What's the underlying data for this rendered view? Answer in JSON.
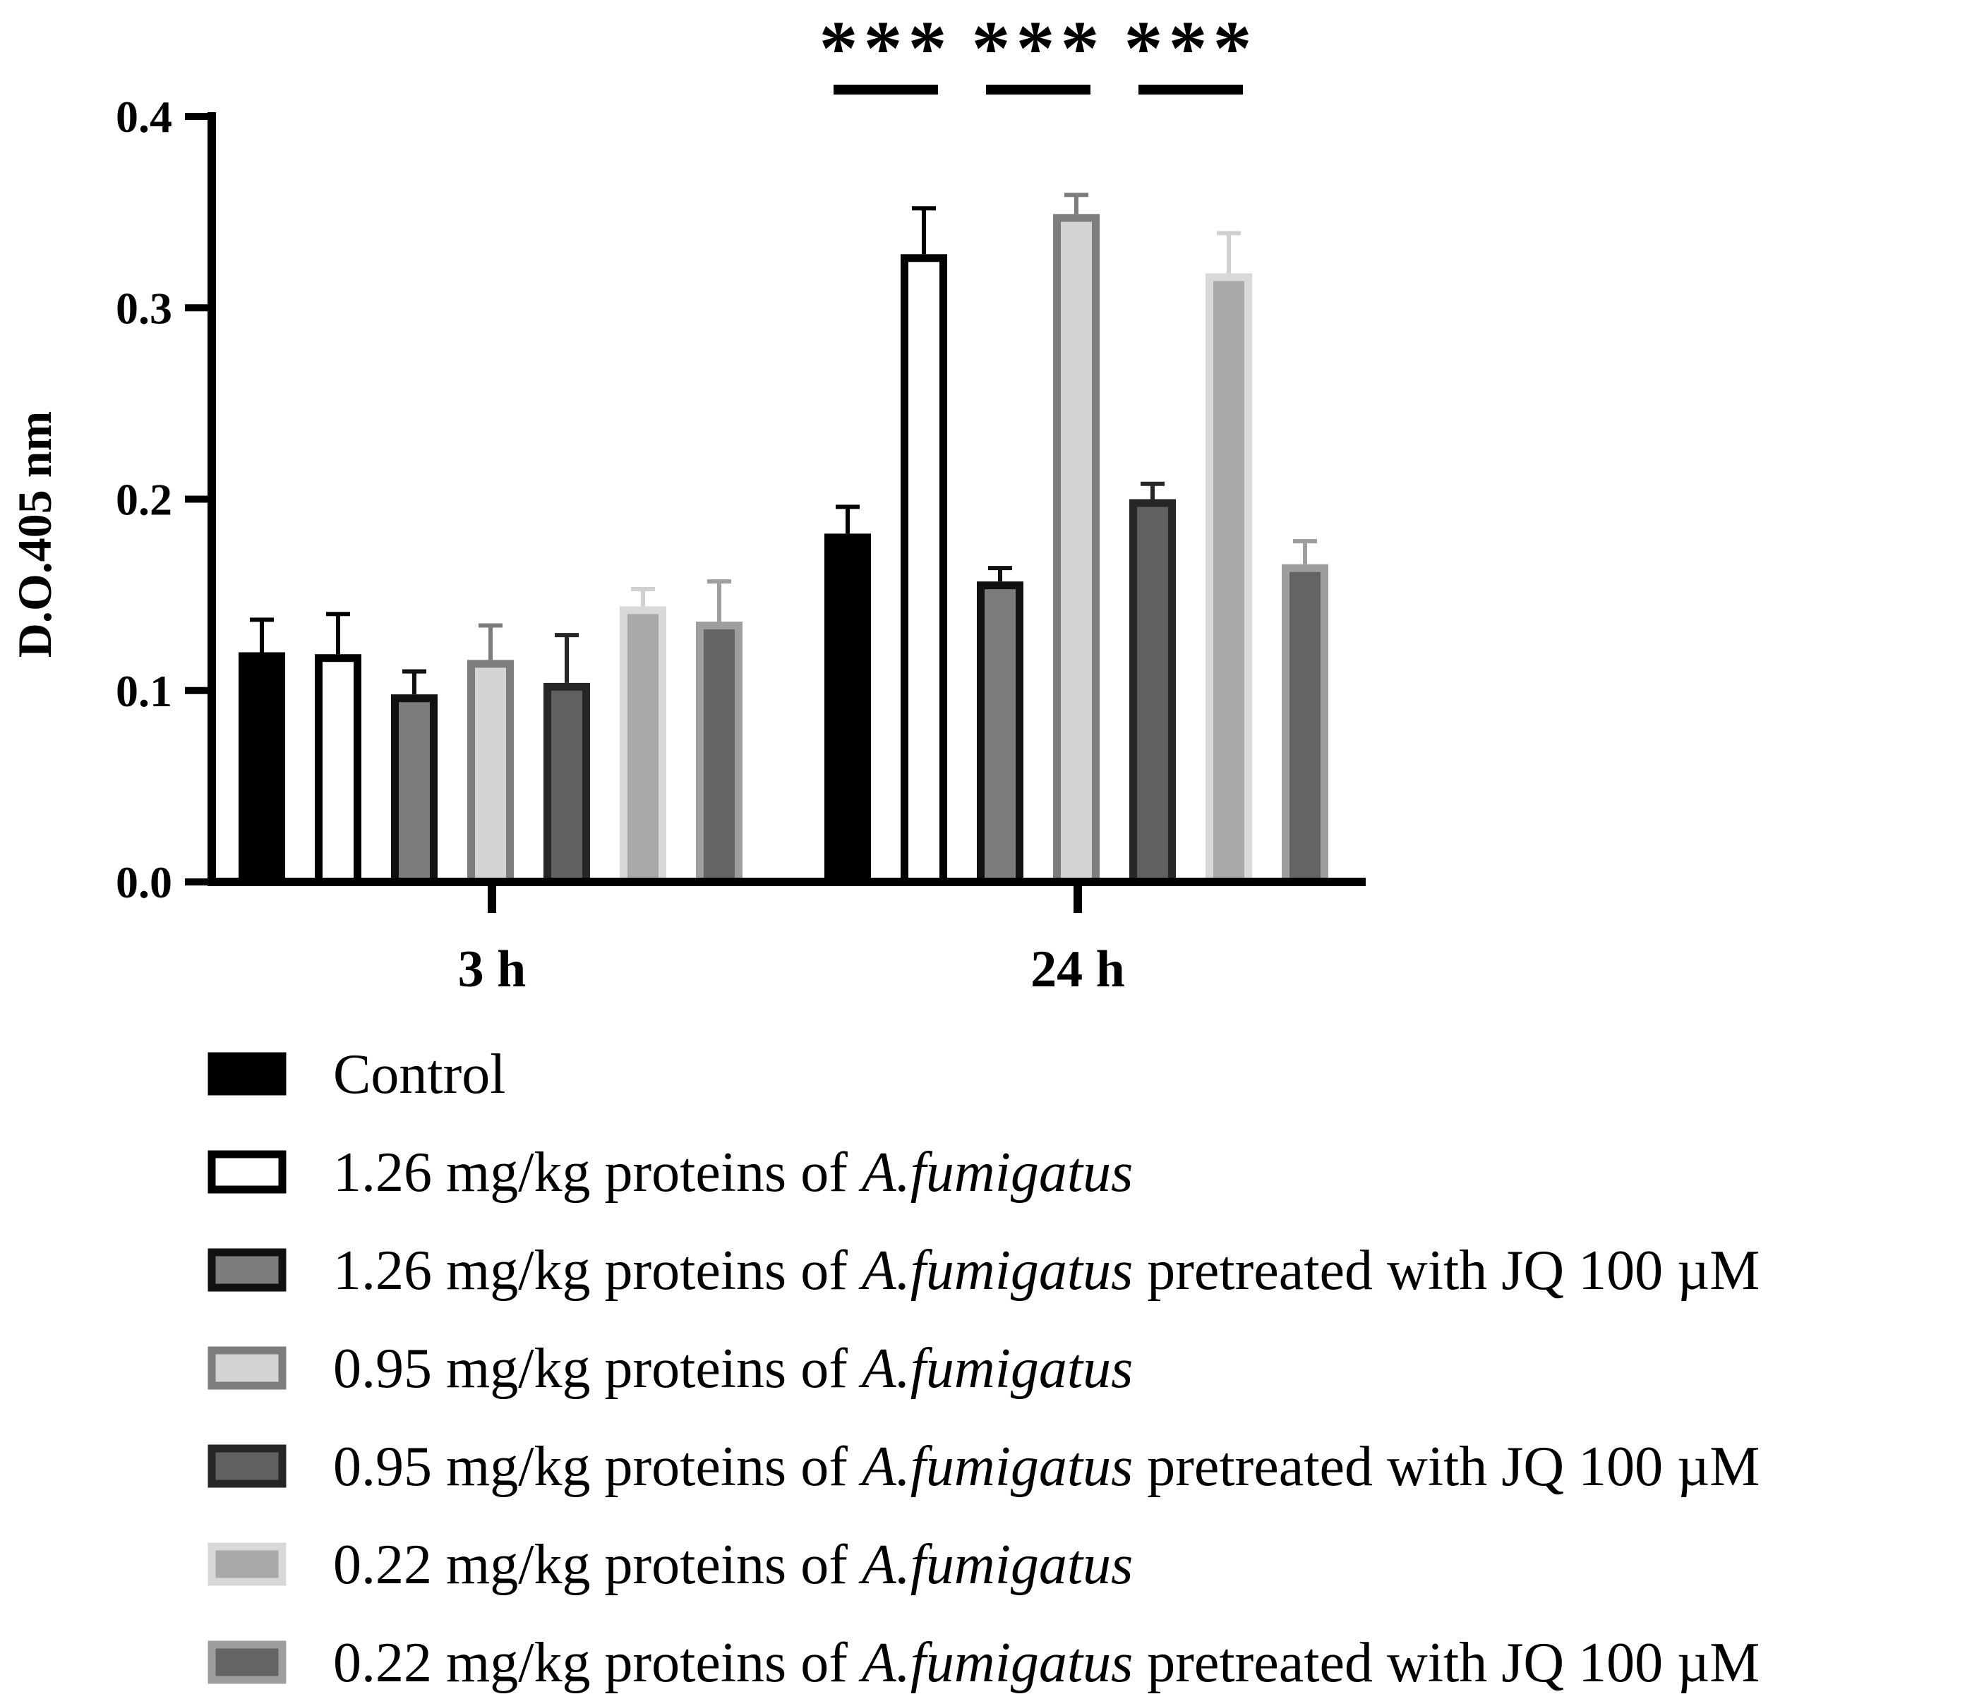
{
  "chart_data": {
    "type": "bar",
    "ylabel": "D.O.405 nm",
    "ylim": [
      0,
      0.4
    ],
    "yticks": [
      "0.0",
      "0.1",
      "0.2",
      "0.3",
      "0.4"
    ],
    "categories": [
      "3 h",
      "24 h"
    ],
    "series": [
      {
        "name": "Control",
        "values": [
          0.12,
          0.182
        ],
        "errors": [
          0.017,
          0.014
        ],
        "fill": "#000000",
        "edge": "#000000",
        "err": "#000000"
      },
      {
        "name": "1.26 mg/kg proteins of A.fumigatus",
        "values": [
          0.119,
          0.328
        ],
        "errors": [
          0.021,
          0.024
        ],
        "fill": "#ffffff",
        "edge": "#000000",
        "err": "#000000"
      },
      {
        "name": "1.26 mg/kg  proteins of A.fumigatus  pretreated with JQ 100 µM",
        "values": [
          0.098,
          0.157
        ],
        "errors": [
          0.012,
          0.007
        ],
        "fill": "#7c7c7c",
        "edge": "#111111",
        "err": "#111111"
      },
      {
        "name": "0.95 mg/kg proteins of A.fumigatus",
        "values": [
          0.116,
          0.349
        ],
        "errors": [
          0.018,
          0.01
        ],
        "fill": "#d4d4d4",
        "edge": "#7d7d7d",
        "err": "#7d7d7d"
      },
      {
        "name": "0.95 mg/kg  proteins of A.fumigatus  pretreated with JQ 100 µM",
        "values": [
          0.104,
          0.2
        ],
        "errors": [
          0.025,
          0.008
        ],
        "fill": "#606060",
        "edge": "#262626",
        "err": "#262626"
      },
      {
        "name": "0.22 mg/kg proteins of A.fumigatus",
        "values": [
          0.144,
          0.318
        ],
        "errors": [
          0.009,
          0.021
        ],
        "fill": "#a9a9a9",
        "edge": "#d8d8d8",
        "err": "#d0d0d0"
      },
      {
        "name": "0.22 mg/kg  proteins of A.fumigatus  pretreated with JQ 100 µM",
        "values": [
          0.136,
          0.166
        ],
        "errors": [
          0.021,
          0.012
        ],
        "fill": "#646464",
        "edge": "#9e9e9e",
        "err": "#9e9e9e"
      }
    ],
    "significance": [
      {
        "category": "24 h",
        "pair": [
          0,
          1
        ],
        "label": "***"
      },
      {
        "category": "24 h",
        "pair": [
          2,
          3
        ],
        "label": "***"
      },
      {
        "category": "24 h",
        "pair": [
          4,
          5
        ],
        "label": "***"
      }
    ],
    "legend": {
      "position": "bottom",
      "entries": [
        {
          "pre": "Control",
          "species": "",
          "post": ""
        },
        {
          "pre": "1.26 mg/kg proteins of ",
          "species": "A.fumigatus",
          "post": ""
        },
        {
          "pre": "1.26 mg/kg  proteins of ",
          "species": "A.fumigatus",
          "post": "  pretreated with JQ 100 µM"
        },
        {
          "pre": "0.95 mg/kg proteins of ",
          "species": "A.fumigatus",
          "post": ""
        },
        {
          "pre": "0.95 mg/kg  proteins of ",
          "species": "A.fumigatus",
          "post": "  pretreated with JQ 100 µM"
        },
        {
          "pre": "0.22 mg/kg proteins of ",
          "species": "A.fumigatus",
          "post": ""
        },
        {
          "pre": "0.22 mg/kg  proteins of ",
          "species": "A.fumigatus",
          "post": "  pretreated with JQ 100 µM"
        }
      ]
    }
  }
}
